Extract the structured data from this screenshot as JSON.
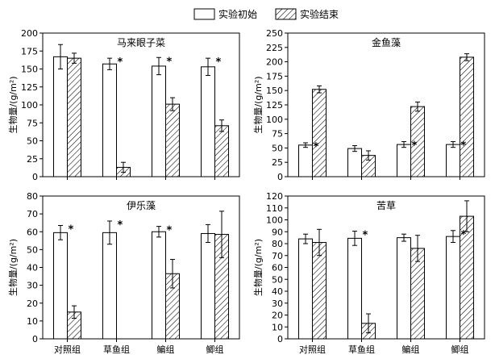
{
  "legend": {
    "initial_label": "实验初始",
    "final_label": "实验结束"
  },
  "colors": {
    "bar_fill": "#ffffff",
    "bar_stroke": "#000000",
    "hatch": "#000000"
  },
  "chart_data": [
    {
      "type": "bar",
      "title": "马来眼子菜",
      "ylabel": "生物量/(g/m²)",
      "ylim": [
        0,
        200
      ],
      "yticks": [
        0,
        25,
        50,
        75,
        100,
        125,
        150,
        175,
        200
      ],
      "categories": [
        "对照组",
        "草鱼组",
        "鳊组",
        "鲫组"
      ],
      "show_xticks": false,
      "series": [
        {
          "name": "实验初始",
          "values": [
            167,
            157,
            154,
            153
          ],
          "errors": [
            17,
            8,
            12,
            12
          ],
          "stars": [
            false,
            true,
            true,
            true
          ]
        },
        {
          "name": "实验结束",
          "values": [
            165,
            13,
            101,
            71
          ],
          "errors": [
            7,
            7,
            9,
            8
          ],
          "stars": [
            false,
            false,
            false,
            false
          ]
        }
      ]
    },
    {
      "type": "bar",
      "title": "金鱼藻",
      "ylabel": "生物量/(g/m²)",
      "ylim": [
        0,
        250
      ],
      "yticks": [
        0,
        25,
        50,
        75,
        100,
        125,
        150,
        175,
        200,
        225,
        250
      ],
      "categories": [
        "对照组",
        "草鱼组",
        "鳊组",
        "鲫组"
      ],
      "show_xticks": false,
      "series": [
        {
          "name": "实验初始",
          "values": [
            55,
            49,
            56,
            56
          ],
          "errors": [
            4,
            5,
            5,
            5
          ],
          "stars": [
            true,
            false,
            true,
            true
          ]
        },
        {
          "name": "实验结束",
          "values": [
            152,
            37,
            122,
            208
          ],
          "errors": [
            6,
            8,
            8,
            6
          ],
          "stars": [
            false,
            false,
            false,
            false
          ]
        }
      ]
    },
    {
      "type": "bar",
      "title": "伊乐藻",
      "ylabel": "生物量/(g/m²)",
      "ylim": [
        0,
        80
      ],
      "yticks": [
        0,
        10,
        20,
        30,
        40,
        50,
        60,
        70,
        80
      ],
      "categories": [
        "对照组",
        "草鱼组",
        "鳊组",
        "鲫组"
      ],
      "show_xticks": true,
      "series": [
        {
          "name": "实验初始",
          "values": [
            59.5,
            59.5,
            60,
            59
          ],
          "errors": [
            4,
            6.5,
            3,
            5
          ],
          "stars": [
            true,
            true,
            true,
            false
          ]
        },
        {
          "name": "实验结束",
          "values": [
            15,
            0,
            36.5,
            58.5
          ],
          "errors": [
            3.5,
            0,
            8,
            13
          ],
          "stars": [
            false,
            false,
            false,
            false
          ]
        }
      ]
    },
    {
      "type": "bar",
      "title": "苦草",
      "ylabel": "生物量/(g/m²)",
      "ylim": [
        0,
        120
      ],
      "yticks": [
        0,
        10,
        20,
        30,
        40,
        50,
        60,
        70,
        80,
        90,
        100,
        110,
        120
      ],
      "categories": [
        "对照组",
        "草鱼组",
        "鳊组",
        "鲫组"
      ],
      "show_xticks": true,
      "series": [
        {
          "name": "实验初始",
          "values": [
            84,
            84.5,
            85,
            86
          ],
          "errors": [
            4,
            6,
            3,
            5
          ],
          "stars": [
            false,
            true,
            false,
            true
          ]
        },
        {
          "name": "实验结束",
          "values": [
            81,
            13,
            76,
            103
          ],
          "errors": [
            11,
            8,
            11,
            13
          ],
          "stars": [
            false,
            false,
            false,
            false
          ]
        }
      ]
    }
  ]
}
